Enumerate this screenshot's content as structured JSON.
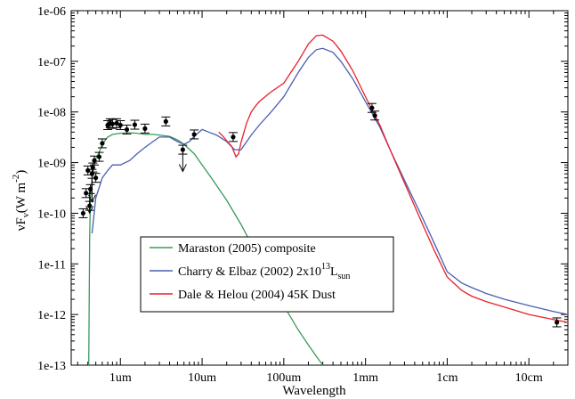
{
  "chart_data": {
    "type": "line",
    "x_scale": "log",
    "y_scale": "log",
    "xlim": [
      0.25,
      0.3
    ],
    "ylim": [
      1e-13,
      1e-06
    ],
    "xlabel": "Wavelength",
    "ylabel_main": "νF",
    "ylabel_sub": "ν",
    "ylabel_unit": "(W m",
    "ylabel_sup": "-2",
    "ylabel_close": ")",
    "x_ticks": [
      {
        "value": 1e-06,
        "label": "1um"
      },
      {
        "value": 1e-05,
        "label": "10um"
      },
      {
        "value": 0.0001,
        "label": "100um"
      },
      {
        "value": 0.001,
        "label": "1mm"
      },
      {
        "value": 0.01,
        "label": "1cm"
      },
      {
        "value": 0.1,
        "label": "10cm"
      }
    ],
    "x_min_m": 2.5e-07,
    "x_max_m": 0.3,
    "y_ticks": [
      {
        "value": 1e-06,
        "label": "1e-06"
      },
      {
        "value": 1e-07,
        "label": "1e-07"
      },
      {
        "value": 1e-08,
        "label": "1e-08"
      },
      {
        "value": 1e-09,
        "label": "1e-09"
      },
      {
        "value": 1e-10,
        "label": "1e-10"
      },
      {
        "value": 1e-11,
        "label": "1e-11"
      },
      {
        "value": 1e-12,
        "label": "1e-12"
      },
      {
        "value": 1e-13,
        "label": "1e-13"
      }
    ],
    "legend": {
      "position": "lower-left",
      "entries": [
        {
          "color": "#3a9a5a",
          "text": "Maraston (2005) composite",
          "sup": "",
          "sub": "",
          "tail": ""
        },
        {
          "color": "#4a5fb0",
          "text": "Charry & Elbaz (2002) 2x10",
          "sup": "13",
          "sub": "sun",
          "tail": "L"
        },
        {
          "color": "#e8202a",
          "text": "Dale & Helou (2004) 45K Dust",
          "sup": "",
          "sub": "",
          "tail": ""
        }
      ]
    },
    "series": [
      {
        "name": "Maraston (2005) composite",
        "color": "#3a9a5a",
        "points": [
          [
            4.1e-07,
            1e-13
          ],
          [
            4.2e-07,
            3e-11
          ],
          [
            4.3e-07,
            2e-10
          ],
          [
            4.5e-07,
            5e-10
          ],
          [
            4.7e-07,
            8e-10
          ],
          [
            5e-07,
            1.2e-09
          ],
          [
            5.5e-07,
            1.6e-09
          ],
          [
            6e-07,
            2.3e-09
          ],
          [
            7e-07,
            3.2e-09
          ],
          [
            8e-07,
            3.6e-09
          ],
          [
            1e-06,
            3.8e-09
          ],
          [
            1.3e-06,
            3.9e-09
          ],
          [
            1.6e-06,
            3.8e-09
          ],
          [
            2e-06,
            3.6e-09
          ],
          [
            2.5e-06,
            3.6e-09
          ],
          [
            3e-06,
            3.5e-09
          ],
          [
            4e-06,
            3.3e-09
          ],
          [
            5e-06,
            2.8e-09
          ],
          [
            6e-06,
            2.3e-09
          ],
          [
            8e-06,
            1.5e-09
          ],
          [
            1e-05,
            9e-10
          ],
          [
            1.3e-05,
            5e-10
          ],
          [
            2e-05,
            1.8e-10
          ],
          [
            3e-05,
            6e-11
          ],
          [
            4e-05,
            2.5e-11
          ],
          [
            6e-05,
            8e-12
          ],
          [
            8e-05,
            3e-12
          ],
          [
            0.0001,
            1.5e-12
          ],
          [
            0.00015,
            5e-13
          ],
          [
            0.0002,
            2.5e-13
          ],
          [
            0.00025,
            1.5e-13
          ],
          [
            0.0003,
            1e-13
          ]
        ]
      },
      {
        "name": "Charry & Elbaz (2002) 2x10^13 Lsun",
        "color": "#4a5fb0",
        "points": [
          [
            4.5e-07,
            4e-11
          ],
          [
            5e-07,
            2e-10
          ],
          [
            6e-07,
            5e-10
          ],
          [
            7e-07,
            7e-10
          ],
          [
            8e-07,
            9e-10
          ],
          [
            1e-06,
            9e-10
          ],
          [
            1.3e-06,
            1.1e-09
          ],
          [
            1.6e-06,
            1.5e-09
          ],
          [
            2e-06,
            2e-09
          ],
          [
            2.5e-06,
            2.6e-09
          ],
          [
            3e-06,
            3.2e-09
          ],
          [
            4e-06,
            3.2e-09
          ],
          [
            5e-06,
            2.6e-09
          ],
          [
            6e-06,
            2.3e-09
          ],
          [
            7e-06,
            2.6e-09
          ],
          [
            8e-06,
            3.3e-09
          ],
          [
            1e-05,
            4.5e-09
          ],
          [
            1.2e-05,
            4e-09
          ],
          [
            1.5e-05,
            3.5e-09
          ],
          [
            2e-05,
            2.6e-09
          ],
          [
            2.5e-05,
            1.8e-09
          ],
          [
            3e-05,
            1.8e-09
          ],
          [
            4e-05,
            3.5e-09
          ],
          [
            5e-05,
            5.5e-09
          ],
          [
            7e-05,
            1e-08
          ],
          [
            0.0001,
            2e-08
          ],
          [
            0.00015,
            6e-08
          ],
          [
            0.0002,
            1.2e-07
          ],
          [
            0.00025,
            1.7e-07
          ],
          [
            0.0003,
            1.8e-07
          ],
          [
            0.0004,
            1.5e-07
          ],
          [
            0.0005,
            1e-07
          ],
          [
            0.0007,
            4.5e-08
          ],
          [
            0.001,
            1.6e-08
          ],
          [
            0.0015,
            5e-09
          ],
          [
            0.002,
            1.8e-09
          ],
          [
            0.003,
            4.5e-10
          ],
          [
            0.005,
            8e-11
          ],
          [
            0.007,
            2.5e-11
          ],
          [
            0.01,
            7e-12
          ],
          [
            0.015,
            4.2e-12
          ],
          [
            0.02,
            3.4e-12
          ],
          [
            0.03,
            2.6e-12
          ],
          [
            0.05,
            2e-12
          ],
          [
            0.1,
            1.5e-12
          ],
          [
            0.2,
            1.15e-12
          ],
          [
            0.3,
            1e-12
          ]
        ]
      },
      {
        "name": "Dale & Helou (2004) 45K Dust",
        "color": "#e8202a",
        "points": [
          [
            1.6e-05,
            4e-09
          ],
          [
            1.8e-05,
            3.3e-09
          ],
          [
            2e-05,
            2.7e-09
          ],
          [
            2.3e-05,
            2.1e-09
          ],
          [
            2.6e-05,
            1.3e-09
          ],
          [
            2.8e-05,
            1.5e-09
          ],
          [
            3e-05,
            2.5e-09
          ],
          [
            3.5e-05,
            6e-09
          ],
          [
            4e-05,
            1e-08
          ],
          [
            4.5e-05,
            1.3e-08
          ],
          [
            5e-05,
            1.6e-08
          ],
          [
            7e-05,
            2.5e-08
          ],
          [
            0.0001,
            3.7e-08
          ],
          [
            0.00015,
            1e-07
          ],
          [
            0.0002,
            2.2e-07
          ],
          [
            0.00025,
            3.2e-07
          ],
          [
            0.0003,
            3.3e-07
          ],
          [
            0.0004,
            2.5e-07
          ],
          [
            0.0005,
            1.6e-07
          ],
          [
            0.0007,
            6.5e-08
          ],
          [
            0.001,
            2e-08
          ],
          [
            0.0015,
            5.5e-09
          ],
          [
            0.002,
            1.8e-09
          ],
          [
            0.003,
            4e-10
          ],
          [
            0.005,
            6e-11
          ],
          [
            0.007,
            1.8e-11
          ],
          [
            0.01,
            5.5e-12
          ],
          [
            0.015,
            3e-12
          ],
          [
            0.02,
            2.3e-12
          ],
          [
            0.03,
            1.8e-12
          ],
          [
            0.05,
            1.4e-12
          ],
          [
            0.1,
            1e-12
          ],
          [
            0.2,
            8e-13
          ],
          [
            0.3,
            7e-13
          ]
        ]
      }
    ],
    "data_points": [
      [
        3.5e-07,
        1e-10
      ],
      [
        3.8e-07,
        2.5e-10
      ],
      [
        4e-07,
        7e-10
      ],
      [
        4.2e-07,
        1.4e-10
      ],
      [
        4.3e-07,
        3e-10
      ],
      [
        4.5e-07,
        6e-10
      ],
      [
        4.6e-07,
        8e-10
      ],
      [
        4.8e-07,
        1.1e-09
      ],
      [
        5e-07,
        5e-10
      ],
      [
        5.5e-07,
        1.3e-09
      ],
      [
        6e-07,
        2.4e-09
      ],
      [
        7e-07,
        5.5e-09
      ],
      [
        7.5e-07,
        6e-09
      ],
      [
        8e-07,
        5.8e-09
      ],
      [
        9e-07,
        6e-09
      ],
      [
        1e-06,
        5.5e-09
      ],
      [
        1.2e-06,
        4.5e-09
      ],
      [
        1.5e-06,
        5.6e-09
      ],
      [
        2e-06,
        4.7e-09
      ],
      [
        3.6e-06,
        6.5e-09
      ],
      [
        5.8e-06,
        1.8e-09
      ],
      [
        8e-06,
        3.6e-09
      ],
      [
        2.4e-05,
        3.2e-09
      ],
      [
        0.0012,
        1.2e-08
      ],
      [
        0.0013,
        8.5e-09
      ],
      [
        0.22,
        7e-13
      ]
    ],
    "upper_limits": [
      [
        4.2e-07,
        3e-10
      ],
      [
        4.5e-07,
        5e-10
      ],
      [
        5.8e-06,
        2e-09
      ]
    ]
  }
}
